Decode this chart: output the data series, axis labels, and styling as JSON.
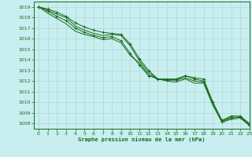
{
  "title": "Graphe pression niveau de la mer (hPa)",
  "bg_color": "#c8eef0",
  "grid_color": "#b0d8d8",
  "line_color": "#1a6b1a",
  "xlim": [
    -0.5,
    23
  ],
  "ylim": [
    1007.5,
    1019.5
  ],
  "yticks": [
    1008,
    1009,
    1010,
    1011,
    1012,
    1013,
    1014,
    1015,
    1016,
    1017,
    1018,
    1019
  ],
  "xticks": [
    0,
    1,
    2,
    3,
    4,
    5,
    6,
    7,
    8,
    9,
    10,
    11,
    12,
    13,
    14,
    15,
    16,
    17,
    18,
    19,
    20,
    21,
    22,
    23
  ],
  "series": [
    {
      "y": [
        1019.0,
        1018.8,
        1018.5,
        1018.1,
        1017.5,
        1017.1,
        1016.8,
        1016.6,
        1016.5,
        1016.4,
        1015.5,
        1014.1,
        1013.0,
        1012.2,
        1012.1,
        1012.1,
        1012.5,
        1012.2,
        1012.0,
        1010.0,
        1008.3,
        1008.7,
        1008.7,
        1008.0
      ],
      "marker": true
    },
    {
      "y": [
        1019.0,
        1018.7,
        1018.3,
        1018.0,
        1017.2,
        1016.8,
        1016.5,
        1016.3,
        1016.4,
        1016.3,
        1015.3,
        1013.9,
        1012.8,
        1012.2,
        1012.1,
        1012.1,
        1012.3,
        1012.0,
        1011.9,
        1009.9,
        1008.2,
        1008.6,
        1008.6,
        1007.9
      ],
      "marker": false
    },
    {
      "y": [
        1019.0,
        1018.6,
        1018.1,
        1017.7,
        1017.0,
        1016.6,
        1016.3,
        1016.1,
        1016.2,
        1015.8,
        1014.6,
        1013.5,
        1012.5,
        1012.2,
        1012.2,
        1012.2,
        1012.5,
        1012.3,
        1012.2,
        1010.0,
        1008.2,
        1008.5,
        1008.6,
        1007.8
      ],
      "marker": true
    },
    {
      "y": [
        1019.0,
        1018.4,
        1017.9,
        1017.4,
        1016.7,
        1016.4,
        1016.2,
        1015.9,
        1016.0,
        1015.6,
        1014.4,
        1013.7,
        1012.6,
        1012.2,
        1012.0,
        1011.9,
        1012.2,
        1011.8,
        1011.8,
        1009.7,
        1008.1,
        1008.4,
        1008.5,
        1007.8
      ],
      "marker": false
    }
  ]
}
